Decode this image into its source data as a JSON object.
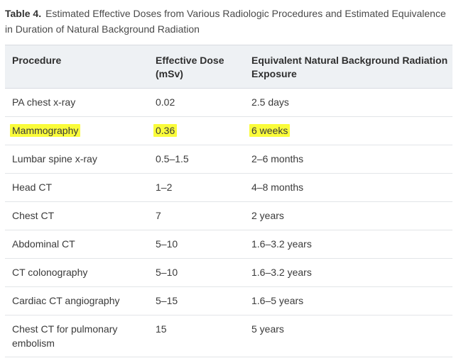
{
  "caption": {
    "label": "Table 4.",
    "text": "Estimated Effective Doses from Various Radiologic Procedures and Estimated Equivalence in Duration of Natural Background Radiation"
  },
  "table": {
    "headers": [
      "Procedure",
      "Effective Dose (mSv)",
      "Equivalent Natural Background Radiation Exposure"
    ],
    "rows": [
      {
        "procedure": "PA chest x-ray",
        "dose": "0.02",
        "equivalent": "2.5 days",
        "highlighted": false
      },
      {
        "procedure": "Mammography",
        "dose": "0.36",
        "equivalent": "6 weeks",
        "highlighted": true
      },
      {
        "procedure": "Lumbar spine x-ray",
        "dose": "0.5–1.5",
        "equivalent": "2–6 months",
        "highlighted": false
      },
      {
        "procedure": "Head CT",
        "dose": "1–2",
        "equivalent": "4–8 months",
        "highlighted": false
      },
      {
        "procedure": "Chest CT",
        "dose": "7",
        "equivalent": "2 years",
        "highlighted": false
      },
      {
        "procedure": "Abdominal CT",
        "dose": "5–10",
        "equivalent": "1.6–3.2 years",
        "highlighted": false
      },
      {
        "procedure": "CT colonography",
        "dose": "5–10",
        "equivalent": "1.6–3.2 years",
        "highlighted": false
      },
      {
        "procedure": "Cardiac CT angiography",
        "dose": "5–15",
        "equivalent": "1.6–5 years",
        "highlighted": false
      },
      {
        "procedure": "Chest CT for pulmonary embolism",
        "dose": "15",
        "equivalent": "5 years",
        "highlighted": false
      }
    ]
  },
  "colors": {
    "highlight": "#fafc3a",
    "header_bg": "#eef1f4",
    "border": "#d7dbe0"
  }
}
